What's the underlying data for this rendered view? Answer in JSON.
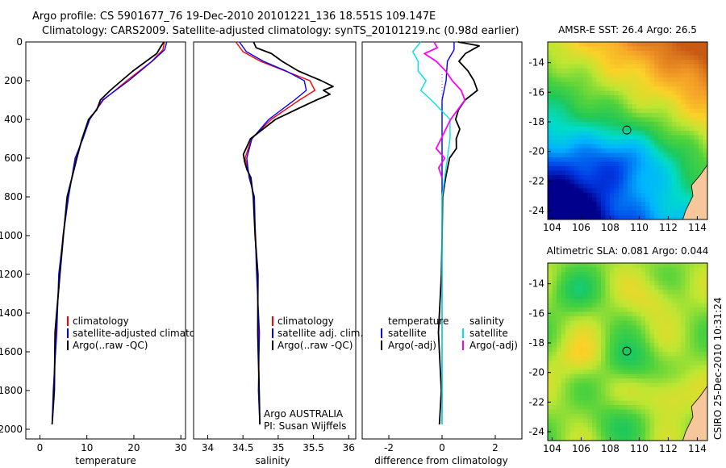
{
  "header": {
    "line1": "Argo profile: CS 5901677_76 19-Dec-2010 20101221_136 18.551S 109.147E",
    "line2": "Climatology: CARS2009. Satellite-adjusted climatology: synTS_20101219.nc (0.98d earlier)"
  },
  "side_stamp": "CSIRO 25-Dec-2010 10:31:24",
  "colors": {
    "climatology": "#ff0000",
    "satellite": "#0000ff",
    "argo": "#000000",
    "sal_satellite": "#00e5e5",
    "sal_argo": "#ff00ff"
  },
  "chart_data": [
    {
      "id": "temperature",
      "type": "line",
      "xlabel": "temperature",
      "xlim": [
        -3,
        31
      ],
      "xticks": [
        0,
        10,
        20,
        30
      ],
      "ylim": [
        2050,
        0
      ],
      "yticks": [
        0,
        200,
        400,
        600,
        800,
        1000,
        1200,
        1400,
        1600,
        1800,
        2000
      ],
      "legend": [
        "climatology",
        "satellite-adjusted climatology",
        "Argo(..raw -QC)"
      ],
      "series": [
        {
          "name": "climatology",
          "color": "#ff0000",
          "y": [
            0,
            40,
            100,
            200,
            300,
            400,
            500,
            600,
            800,
            1000,
            1200,
            1500,
            1800,
            1975
          ],
          "x": [
            26.5,
            26.2,
            23.8,
            18.5,
            13.5,
            10.6,
            9.0,
            7.7,
            6.0,
            4.9,
            4.2,
            3.4,
            2.9,
            2.6
          ]
        },
        {
          "name": "satellite-adjusted climatology",
          "color": "#0000ff",
          "y": [
            0,
            40,
            100,
            200,
            300,
            400,
            500,
            600,
            800,
            1000,
            1200,
            1500,
            1800,
            1975
          ],
          "x": [
            27.0,
            26.6,
            24.0,
            18.7,
            13.5,
            10.6,
            9.0,
            7.7,
            6.0,
            4.9,
            4.2,
            3.4,
            2.9,
            2.6
          ]
        },
        {
          "name": "Argo(..raw -QC)",
          "color": "#000000",
          "y": [
            0,
            25,
            60,
            100,
            150,
            200,
            250,
            300,
            350,
            400,
            500,
            600,
            800,
            1000,
            1200,
            1500,
            1800,
            1975
          ],
          "x": [
            26.4,
            25.9,
            24.8,
            22.5,
            20.0,
            17.2,
            15.0,
            13.0,
            11.9,
            10.5,
            9.0,
            7.7,
            6.0,
            4.9,
            4.2,
            3.4,
            2.9,
            2.6
          ]
        }
      ]
    },
    {
      "id": "salinity",
      "type": "line",
      "xlabel": "salinity",
      "xlim": [
        33.8,
        36.1
      ],
      "xticks": [
        34,
        34.5,
        35,
        35.5,
        36
      ],
      "ylim": [
        2050,
        0
      ],
      "legend": [
        "climatology",
        "satellite adj. clim.",
        "Argo(..raw -QC)"
      ],
      "annotation": [
        "Argo AUSTRALIA",
        "PI: Susan Wijffels"
      ],
      "series": [
        {
          "name": "climatology",
          "color": "#ff0000",
          "y": [
            0,
            50,
            100,
            150,
            200,
            250,
            300,
            400,
            500,
            600,
            700,
            800,
            1000,
            1200,
            1500,
            1800,
            1975
          ],
          "x": [
            34.4,
            34.5,
            34.75,
            35.1,
            35.45,
            35.52,
            35.3,
            34.9,
            34.62,
            34.53,
            34.6,
            34.65,
            34.68,
            34.7,
            34.72,
            34.73,
            34.74
          ]
        },
        {
          "name": "satellite adj. clim.",
          "color": "#0000ff",
          "y": [
            0,
            50,
            100,
            150,
            200,
            250,
            300,
            400,
            500,
            600,
            700,
            800,
            1000,
            1200,
            1500,
            1800,
            1975
          ],
          "x": [
            34.45,
            34.55,
            34.8,
            35.1,
            35.38,
            35.4,
            35.22,
            34.88,
            34.62,
            34.55,
            34.6,
            34.65,
            34.68,
            34.7,
            34.72,
            34.73,
            34.74
          ]
        },
        {
          "name": "Argo(..raw -QC)",
          "color": "#000000",
          "y": [
            0,
            30,
            60,
            100,
            150,
            200,
            230,
            250,
            270,
            300,
            350,
            400,
            500,
            580,
            620,
            660,
            700,
            800,
            1000,
            1200,
            1500,
            1800,
            1975
          ],
          "x": [
            34.65,
            34.7,
            34.9,
            35.05,
            35.3,
            35.6,
            35.78,
            35.65,
            35.72,
            35.55,
            35.25,
            34.95,
            34.62,
            34.5,
            34.52,
            34.57,
            34.6,
            34.65,
            34.68,
            34.7,
            34.72,
            34.73,
            34.74
          ]
        }
      ]
    },
    {
      "id": "difference",
      "type": "line",
      "xlabel": "difference from climatology",
      "xlim": [
        -3,
        3
      ],
      "xticks": [
        -2,
        0,
        2
      ],
      "ylim": [
        2050,
        0
      ],
      "legend_left_title": "temperature",
      "legend_right_title": "salinity",
      "legend_left": [
        "satellite",
        "Argo(-adj)"
      ],
      "legend_right": [
        "satellite",
        "Argo(-adj)"
      ],
      "series": [
        {
          "name": "temperature satellite",
          "color": "#0000ff",
          "y": [
            0,
            40,
            100,
            200,
            300,
            400,
            500,
            700,
            1000,
            1500,
            1975
          ],
          "x": [
            0.45,
            0.45,
            0.2,
            0.15,
            0.0,
            0.0,
            0.0,
            0.0,
            0.0,
            0.0,
            0.0
          ]
        },
        {
          "name": "temperature Argo(-adj)",
          "color": "#000000",
          "y": [
            0,
            20,
            60,
            100,
            150,
            200,
            250,
            300,
            350,
            400,
            450,
            500,
            550,
            600,
            700,
            800,
            1000,
            1200,
            1500,
            1800,
            1975
          ],
          "x": [
            0.6,
            1.4,
            0.9,
            0.6,
            1.0,
            1.2,
            1.3,
            0.9,
            0.6,
            0.5,
            0.7,
            0.5,
            0.55,
            0.3,
            0.1,
            0.05,
            0.0,
            -0.05,
            -0.1,
            -0.05,
            -0.1
          ]
        },
        {
          "name": "salinity satellite",
          "color": "#00e5e5",
          "y": [
            0,
            50,
            100,
            150,
            200,
            250,
            300,
            400,
            500,
            600,
            800,
            1000,
            1500,
            1975
          ],
          "x": [
            -0.8,
            -1.1,
            -0.9,
            -0.9,
            -0.6,
            -0.8,
            -0.4,
            0.3,
            0.3,
            0.2,
            0.0,
            0.0,
            0.0,
            0.0
          ]
        },
        {
          "name": "salinity Argo(-adj)",
          "color": "#ff00ff",
          "y": [
            0,
            30,
            60,
            100,
            150,
            200,
            250,
            300,
            400,
            500,
            550,
            600,
            650,
            700
          ],
          "x": [
            -0.3,
            -0.15,
            -0.7,
            -0.2,
            0.15,
            0.35,
            0.75,
            0.85,
            0.3,
            0.0,
            -0.25,
            0.1,
            -0.1,
            0.0
          ]
        }
      ]
    },
    {
      "id": "sst_map",
      "type": "heatmap",
      "title": "AMSR-E SST: 26.4  Argo: 26.5",
      "xlim": [
        103.7,
        114.7
      ],
      "ylim": [
        -24.6,
        -12.6
      ],
      "xticks": [
        104,
        106,
        108,
        110,
        112,
        114
      ],
      "yticks": [
        -14,
        -16,
        -18,
        -20,
        -22,
        -24
      ],
      "marker": {
        "lon": 109.147,
        "lat": -18.551
      }
    },
    {
      "id": "sla_map",
      "type": "heatmap",
      "title": "Altimetric SLA: 0.081  Argo: 0.044",
      "xlim": [
        103.7,
        114.7
      ],
      "ylim": [
        -24.6,
        -12.6
      ],
      "xticks": [
        104,
        106,
        108,
        110,
        112,
        114
      ],
      "yticks": [
        -14,
        -16,
        -18,
        -20,
        -22,
        -24
      ],
      "marker": {
        "lon": 109.147,
        "lat": -18.551
      }
    }
  ]
}
